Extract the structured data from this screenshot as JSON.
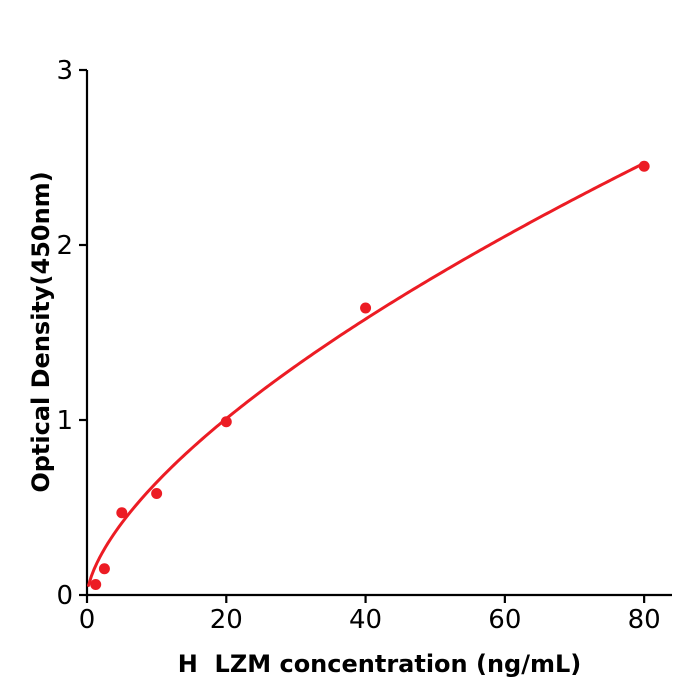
{
  "figure": {
    "xlabel": "H  LZM concentration (ng/mL)",
    "ylabel": "Optical Density(450nm)"
  },
  "chart_data": {
    "type": "scatter",
    "title": "",
    "xlabel": "H  LZM concentration (ng/mL)",
    "ylabel": "Optical Density(450nm)",
    "x": [
      1.25,
      2.5,
      5,
      10,
      20,
      40,
      80
    ],
    "y": [
      0.06,
      0.15,
      0.47,
      0.58,
      0.99,
      1.64,
      2.45
    ],
    "x_ticks": [
      0,
      20,
      40,
      60,
      80
    ],
    "y_ticks": [
      0,
      1,
      2,
      3
    ],
    "xlim": [
      0,
      84
    ],
    "ylim": [
      0,
      3
    ],
    "grid": false,
    "legend": "none",
    "fit_curve": {
      "model": "power",
      "formula": "y = a * x^b",
      "a": 0.1455,
      "b": 0.646,
      "x_range": [
        0.22,
        80
      ]
    },
    "colors": {
      "series": "#ec1c24",
      "axis": "#000000",
      "background": "#ffffff"
    },
    "marker": {
      "shape": "circle",
      "radius_px": 5.5
    }
  }
}
